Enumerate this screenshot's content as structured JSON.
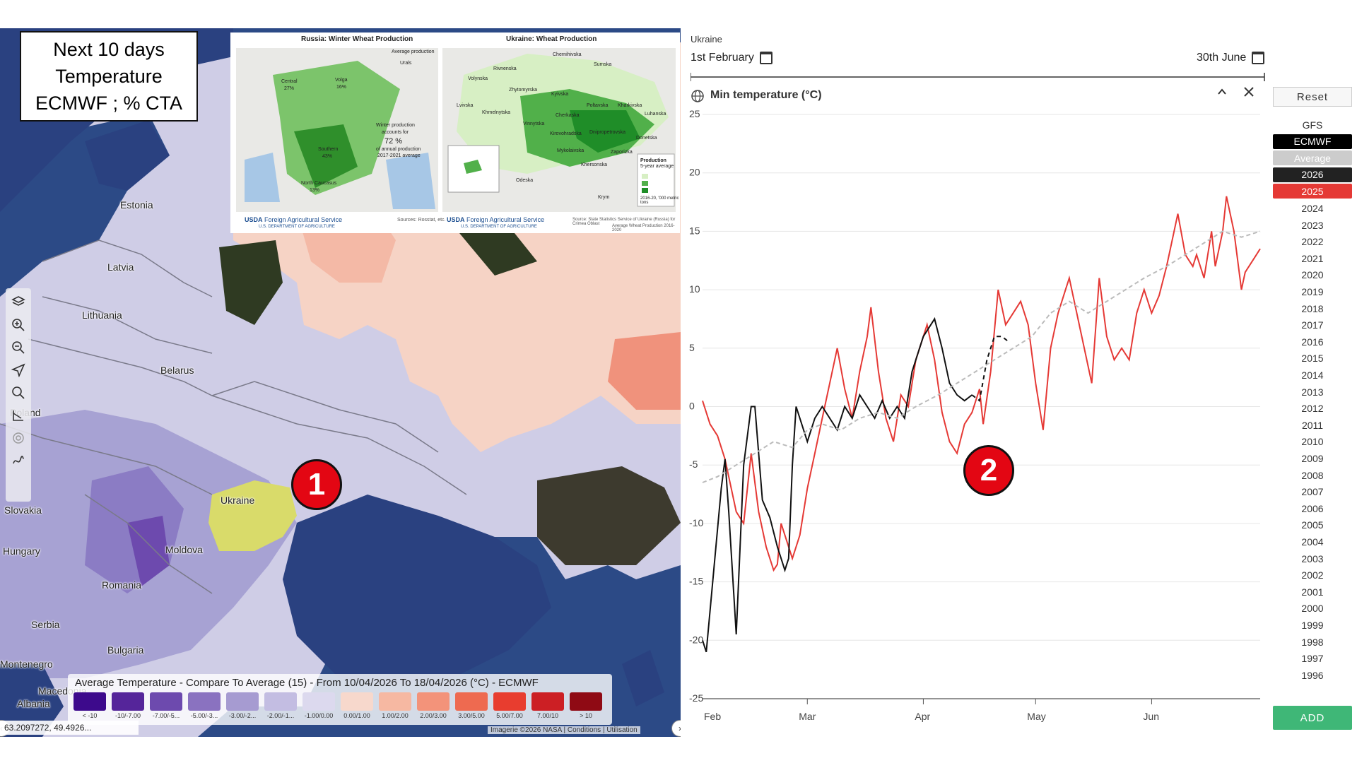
{
  "map": {
    "info_box": [
      "Next 10 days",
      "Temperature",
      "ECMWF ; % CTA"
    ],
    "countries": [
      {
        "name": "Estonia"
      },
      {
        "name": "Latvia"
      },
      {
        "name": "Lithuania"
      },
      {
        "name": "Belarus"
      },
      {
        "name": "Poland"
      },
      {
        "name": "Ukraine"
      },
      {
        "name": "Slovakia"
      },
      {
        "name": "Hungary"
      },
      {
        "name": "Moldova"
      },
      {
        "name": "Romania"
      },
      {
        "name": "Serbia"
      },
      {
        "name": "Bulgaria"
      },
      {
        "name": "Montenegro"
      },
      {
        "name": "Albania"
      },
      {
        "name": "Macedonia"
      }
    ],
    "badge": "1",
    "legend": {
      "title": "Average Temperature - Compare To Average (15) - From 10/04/2026 To 18/04/2026 (°C) - ECMWF",
      "items": [
        {
          "label": "< -10",
          "color": "#3d0a8c"
        },
        {
          "label": "-10/-7.00",
          "color": "#55259a"
        },
        {
          "label": "-7.00/-5...",
          "color": "#6d4aae"
        },
        {
          "label": "-5.00/-3...",
          "color": "#8a72c0"
        },
        {
          "label": "-3.00/-2...",
          "color": "#a69bd1"
        },
        {
          "label": "-2.00/-1...",
          "color": "#c3bde2"
        },
        {
          "label": "-1.00/0.00",
          "color": "#dcd9ee"
        },
        {
          "label": "0.00/1.00",
          "color": "#f7d8cc"
        },
        {
          "label": "1.00/2.00",
          "color": "#f6b8a2"
        },
        {
          "label": "2.00/3.00",
          "color": "#f3937a"
        },
        {
          "label": "3.00/5.00",
          "color": "#ee6a50"
        },
        {
          "label": "5.00/7.00",
          "color": "#e83d2f"
        },
        {
          "label": "7.00/10",
          "color": "#cc1f24"
        },
        {
          "label": "> 10",
          "color": "#8f0a14"
        }
      ]
    },
    "coords": "63.2097272, 49.4926...",
    "attribution": "Imagerie ©2026 NASA | Conditions | Utilisation",
    "tool_icons": [
      "layers-icon",
      "zoom-in-icon",
      "zoom-out-icon",
      "locate-icon",
      "search-icon",
      "measure-icon",
      "target-icon",
      "draw-icon"
    ],
    "inset": {
      "russia_title": "Russia: Winter Wheat Production",
      "ukraine_title": "Ukraine: Wheat Production",
      "russia_labels": [
        {
          "text": "Average production"
        },
        {
          "text": "Urals"
        },
        {
          "text": "Central"
        },
        {
          "text": "27%"
        },
        {
          "text": "Volga"
        },
        {
          "text": "16%"
        },
        {
          "text": "Winter production"
        },
        {
          "text": "accounts for"
        },
        {
          "text": "72 %"
        },
        {
          "text": "of annual production"
        },
        {
          "text": "2017-2021 average"
        },
        {
          "text": "Southern"
        },
        {
          "text": "43%"
        },
        {
          "text": "North Caucasus"
        },
        {
          "text": "13%"
        }
      ],
      "ukraine_labels": [
        {
          "text": "Volynska"
        },
        {
          "text": "Rivnenska"
        },
        {
          "text": "Chernihivska"
        },
        {
          "text": "Sumska"
        },
        {
          "text": "Zhytomyrska"
        },
        {
          "text": "Kyivska"
        },
        {
          "text": "Poltavska"
        },
        {
          "text": "Kharkivska"
        },
        {
          "text": "Lvivska"
        },
        {
          "text": "Khmelnytska"
        },
        {
          "text": "Cherkaska"
        },
        {
          "text": "Luhanska"
        },
        {
          "text": "Vinnytska"
        },
        {
          "text": "Kirovohradska"
        },
        {
          "text": "Dnipropetrovska"
        },
        {
          "text": "Donetska"
        },
        {
          "text": "Mykolaivska"
        },
        {
          "text": "Zaporizka"
        },
        {
          "text": "Khersonska"
        },
        {
          "text": "Odeska"
        },
        {
          "text": "Krym"
        },
        {
          "text": "Production"
        },
        {
          "text": "5-year average"
        },
        {
          "text": "2016-20, '000 metric tons"
        }
      ],
      "usda_text": "Foreign Agricultural Service",
      "usda_sub": "U.S. DEPARTMENT OF AGRICULTURE",
      "source_left": "Sources: Rosstat, etc.",
      "source_right": "Source: State Statistics Service of Ukraine (Russia) for Crimea Oblast",
      "source_right2": "Average Wheat Production 2016-2020"
    }
  },
  "chart": {
    "region": "Ukraine",
    "start_date": "1st February",
    "end_date": "30th June",
    "title": "Min temperature (°C)",
    "badge": "2",
    "reset_label": "Reset",
    "add_label": "ADD",
    "sources": [
      {
        "label": "GFS",
        "bg": "#ffffff",
        "fg": "#333333"
      },
      {
        "label": "ECMWF",
        "bg": "#000000",
        "fg": "#ffffff"
      },
      {
        "label": "Average",
        "bg": "#cccccc",
        "fg": "#ffffff"
      },
      {
        "label": "2026",
        "bg": "#222222",
        "fg": "#ffffff"
      },
      {
        "label": "2025",
        "bg": "#e53935",
        "fg": "#ffffff"
      }
    ],
    "years": [
      "2024",
      "2023",
      "2022",
      "2021",
      "2020",
      "2019",
      "2018",
      "2017",
      "2016",
      "2015",
      "2014",
      "2013",
      "2012",
      "2011",
      "2010",
      "2009",
      "2008",
      "2007",
      "2006",
      "2005",
      "2004",
      "2003",
      "2002",
      "2001",
      "2000",
      "1999",
      "1998",
      "1997",
      "1996"
    ]
  },
  "chart_data": {
    "type": "line",
    "title": "Min temperature (°C)",
    "xlabel": "",
    "ylabel": "",
    "x_ticks": [
      "Feb",
      "Mar",
      "Apr",
      "May",
      "Jun"
    ],
    "y_ticks": [
      25,
      20,
      15,
      10,
      5,
      0,
      -5,
      -10,
      -15,
      -20,
      -25
    ],
    "ylim": [
      -25,
      25
    ],
    "x_range": [
      "2026-02-01",
      "2026-06-30"
    ],
    "grid": true,
    "series": [
      {
        "name": "2025",
        "color": "#e53935",
        "dash": "",
        "points": [
          [
            "2026-02-01",
            0.5
          ],
          [
            "2026-02-03",
            -1.5
          ],
          [
            "2026-02-05",
            -2.5
          ],
          [
            "2026-02-07",
            -4.5
          ],
          [
            "2026-02-08",
            -6
          ],
          [
            "2026-02-10",
            -9
          ],
          [
            "2026-02-12",
            -10
          ],
          [
            "2026-02-14",
            -4
          ],
          [
            "2026-02-16",
            -9
          ],
          [
            "2026-02-18",
            -12
          ],
          [
            "2026-02-20",
            -14
          ],
          [
            "2026-02-21",
            -13.5
          ],
          [
            "2026-02-22",
            -10
          ],
          [
            "2026-02-23",
            -11
          ],
          [
            "2026-02-25",
            -13
          ],
          [
            "2026-02-27",
            -11
          ],
          [
            "2026-03-01",
            -7
          ],
          [
            "2026-03-03",
            -4
          ],
          [
            "2026-03-05",
            -1
          ],
          [
            "2026-03-07",
            2
          ],
          [
            "2026-03-09",
            5
          ],
          [
            "2026-03-11",
            1.5
          ],
          [
            "2026-03-13",
            -1
          ],
          [
            "2026-03-15",
            3
          ],
          [
            "2026-03-17",
            6
          ],
          [
            "2026-03-18",
            8.5
          ],
          [
            "2026-03-20",
            3
          ],
          [
            "2026-03-22",
            -1
          ],
          [
            "2026-03-24",
            -3
          ],
          [
            "2026-03-26",
            1
          ],
          [
            "2026-03-28",
            0
          ],
          [
            "2026-03-30",
            4
          ],
          [
            "2026-04-01",
            6
          ],
          [
            "2026-04-02",
            7
          ],
          [
            "2026-04-04",
            4
          ],
          [
            "2026-04-06",
            -0.5
          ],
          [
            "2026-04-08",
            -3
          ],
          [
            "2026-04-10",
            -4
          ],
          [
            "2026-04-12",
            -1.5
          ],
          [
            "2026-04-14",
            -0.5
          ],
          [
            "2026-04-16",
            1.5
          ],
          [
            "2026-04-17",
            -1.5
          ],
          [
            "2026-04-19",
            3
          ],
          [
            "2026-04-21",
            10
          ],
          [
            "2026-04-23",
            7
          ],
          [
            "2026-04-25",
            8
          ],
          [
            "2026-04-27",
            9
          ],
          [
            "2026-04-29",
            7
          ],
          [
            "2026-05-01",
            2
          ],
          [
            "2026-05-03",
            -2
          ],
          [
            "2026-05-05",
            5
          ],
          [
            "2026-05-07",
            8
          ],
          [
            "2026-05-09",
            10
          ],
          [
            "2026-05-10",
            11
          ],
          [
            "2026-05-12",
            8
          ],
          [
            "2026-05-14",
            5
          ],
          [
            "2026-05-16",
            2
          ],
          [
            "2026-05-18",
            11
          ],
          [
            "2026-05-20",
            6
          ],
          [
            "2026-05-22",
            4
          ],
          [
            "2026-05-24",
            5
          ],
          [
            "2026-05-26",
            4
          ],
          [
            "2026-05-28",
            8
          ],
          [
            "2026-05-30",
            10
          ],
          [
            "2026-06-01",
            8
          ],
          [
            "2026-06-03",
            9.5
          ],
          [
            "2026-06-05",
            12
          ],
          [
            "2026-06-07",
            15
          ],
          [
            "2026-06-08",
            16.5
          ],
          [
            "2026-06-10",
            13
          ],
          [
            "2026-06-12",
            12
          ],
          [
            "2026-06-13",
            13
          ],
          [
            "2026-06-15",
            11
          ],
          [
            "2026-06-17",
            15
          ],
          [
            "2026-06-18",
            12
          ],
          [
            "2026-06-20",
            15
          ],
          [
            "2026-06-21",
            18
          ],
          [
            "2026-06-23",
            15
          ],
          [
            "2026-06-25",
            10
          ],
          [
            "2026-06-26",
            11.5
          ],
          [
            "2026-06-28",
            12.5
          ],
          [
            "2026-06-30",
            13.5
          ]
        ]
      },
      {
        "name": "2026",
        "color": "#111111",
        "dash": "",
        "points": [
          [
            "2026-02-01",
            -20
          ],
          [
            "2026-02-02",
            -21
          ],
          [
            "2026-02-04",
            -14
          ],
          [
            "2026-02-06",
            -7
          ],
          [
            "2026-02-07",
            -4.5
          ],
          [
            "2026-02-08",
            -9
          ],
          [
            "2026-02-10",
            -19.5
          ],
          [
            "2026-02-12",
            -5
          ],
          [
            "2026-02-14",
            0
          ],
          [
            "2026-02-15",
            0
          ],
          [
            "2026-02-17",
            -8
          ],
          [
            "2026-02-19",
            -9.5
          ],
          [
            "2026-02-21",
            -12
          ],
          [
            "2026-02-23",
            -14
          ],
          [
            "2026-02-24",
            -13
          ],
          [
            "2026-02-25",
            -5
          ],
          [
            "2026-02-26",
            0
          ],
          [
            "2026-02-28",
            -2
          ],
          [
            "2026-03-01",
            -3
          ],
          [
            "2026-03-03",
            -1
          ],
          [
            "2026-03-05",
            0
          ],
          [
            "2026-03-07",
            -1
          ],
          [
            "2026-03-09",
            -2
          ],
          [
            "2026-03-11",
            0
          ],
          [
            "2026-03-13",
            -1
          ],
          [
            "2026-03-15",
            1
          ],
          [
            "2026-03-17",
            0
          ],
          [
            "2026-03-19",
            -1
          ],
          [
            "2026-03-21",
            0.5
          ],
          [
            "2026-03-23",
            -1
          ],
          [
            "2026-03-25",
            0
          ],
          [
            "2026-03-27",
            -1
          ],
          [
            "2026-03-29",
            3
          ],
          [
            "2026-03-31",
            5
          ],
          [
            "2026-04-01",
            6
          ],
          [
            "2026-04-03",
            7
          ],
          [
            "2026-04-04",
            7.5
          ],
          [
            "2026-04-06",
            5
          ],
          [
            "2026-04-08",
            2
          ],
          [
            "2026-04-10",
            1
          ],
          [
            "2026-04-12",
            0.5
          ],
          [
            "2026-04-14",
            1
          ]
        ]
      },
      {
        "name": "ECMWF",
        "color": "#111111",
        "dash": "6,5",
        "points": [
          [
            "2026-04-14",
            1
          ],
          [
            "2026-04-16",
            0.5
          ],
          [
            "2026-04-18",
            4
          ],
          [
            "2026-04-20",
            6
          ],
          [
            "2026-04-22",
            6
          ],
          [
            "2026-04-24",
            5.5
          ]
        ]
      },
      {
        "name": "Average",
        "color": "#bbbbbb",
        "dash": "6,4",
        "points": [
          [
            "2026-02-01",
            -6.5
          ],
          [
            "2026-02-05",
            -6
          ],
          [
            "2026-02-10",
            -5
          ],
          [
            "2026-02-15",
            -4
          ],
          [
            "2026-02-20",
            -3
          ],
          [
            "2026-02-25",
            -3.5
          ],
          [
            "2026-03-01",
            -2
          ],
          [
            "2026-03-05",
            -1.5
          ],
          [
            "2026-03-10",
            -2
          ],
          [
            "2026-03-15",
            -1
          ],
          [
            "2026-03-20",
            -0.5
          ],
          [
            "2026-03-25",
            -1
          ],
          [
            "2026-03-30",
            0
          ],
          [
            "2026-04-05",
            1
          ],
          [
            "2026-04-10",
            2
          ],
          [
            "2026-04-15",
            3
          ],
          [
            "2026-04-20",
            4
          ],
          [
            "2026-04-25",
            5
          ],
          [
            "2026-04-30",
            6
          ],
          [
            "2026-05-05",
            8
          ],
          [
            "2026-05-10",
            9
          ],
          [
            "2026-05-15",
            8
          ],
          [
            "2026-05-20",
            9
          ],
          [
            "2026-05-25",
            10
          ],
          [
            "2026-05-30",
            11
          ],
          [
            "2026-06-05",
            12
          ],
          [
            "2026-06-10",
            13
          ],
          [
            "2026-06-15",
            14
          ],
          [
            "2026-06-20",
            15
          ],
          [
            "2026-06-25",
            14.5
          ],
          [
            "2026-06-30",
            15
          ]
        ]
      }
    ]
  }
}
